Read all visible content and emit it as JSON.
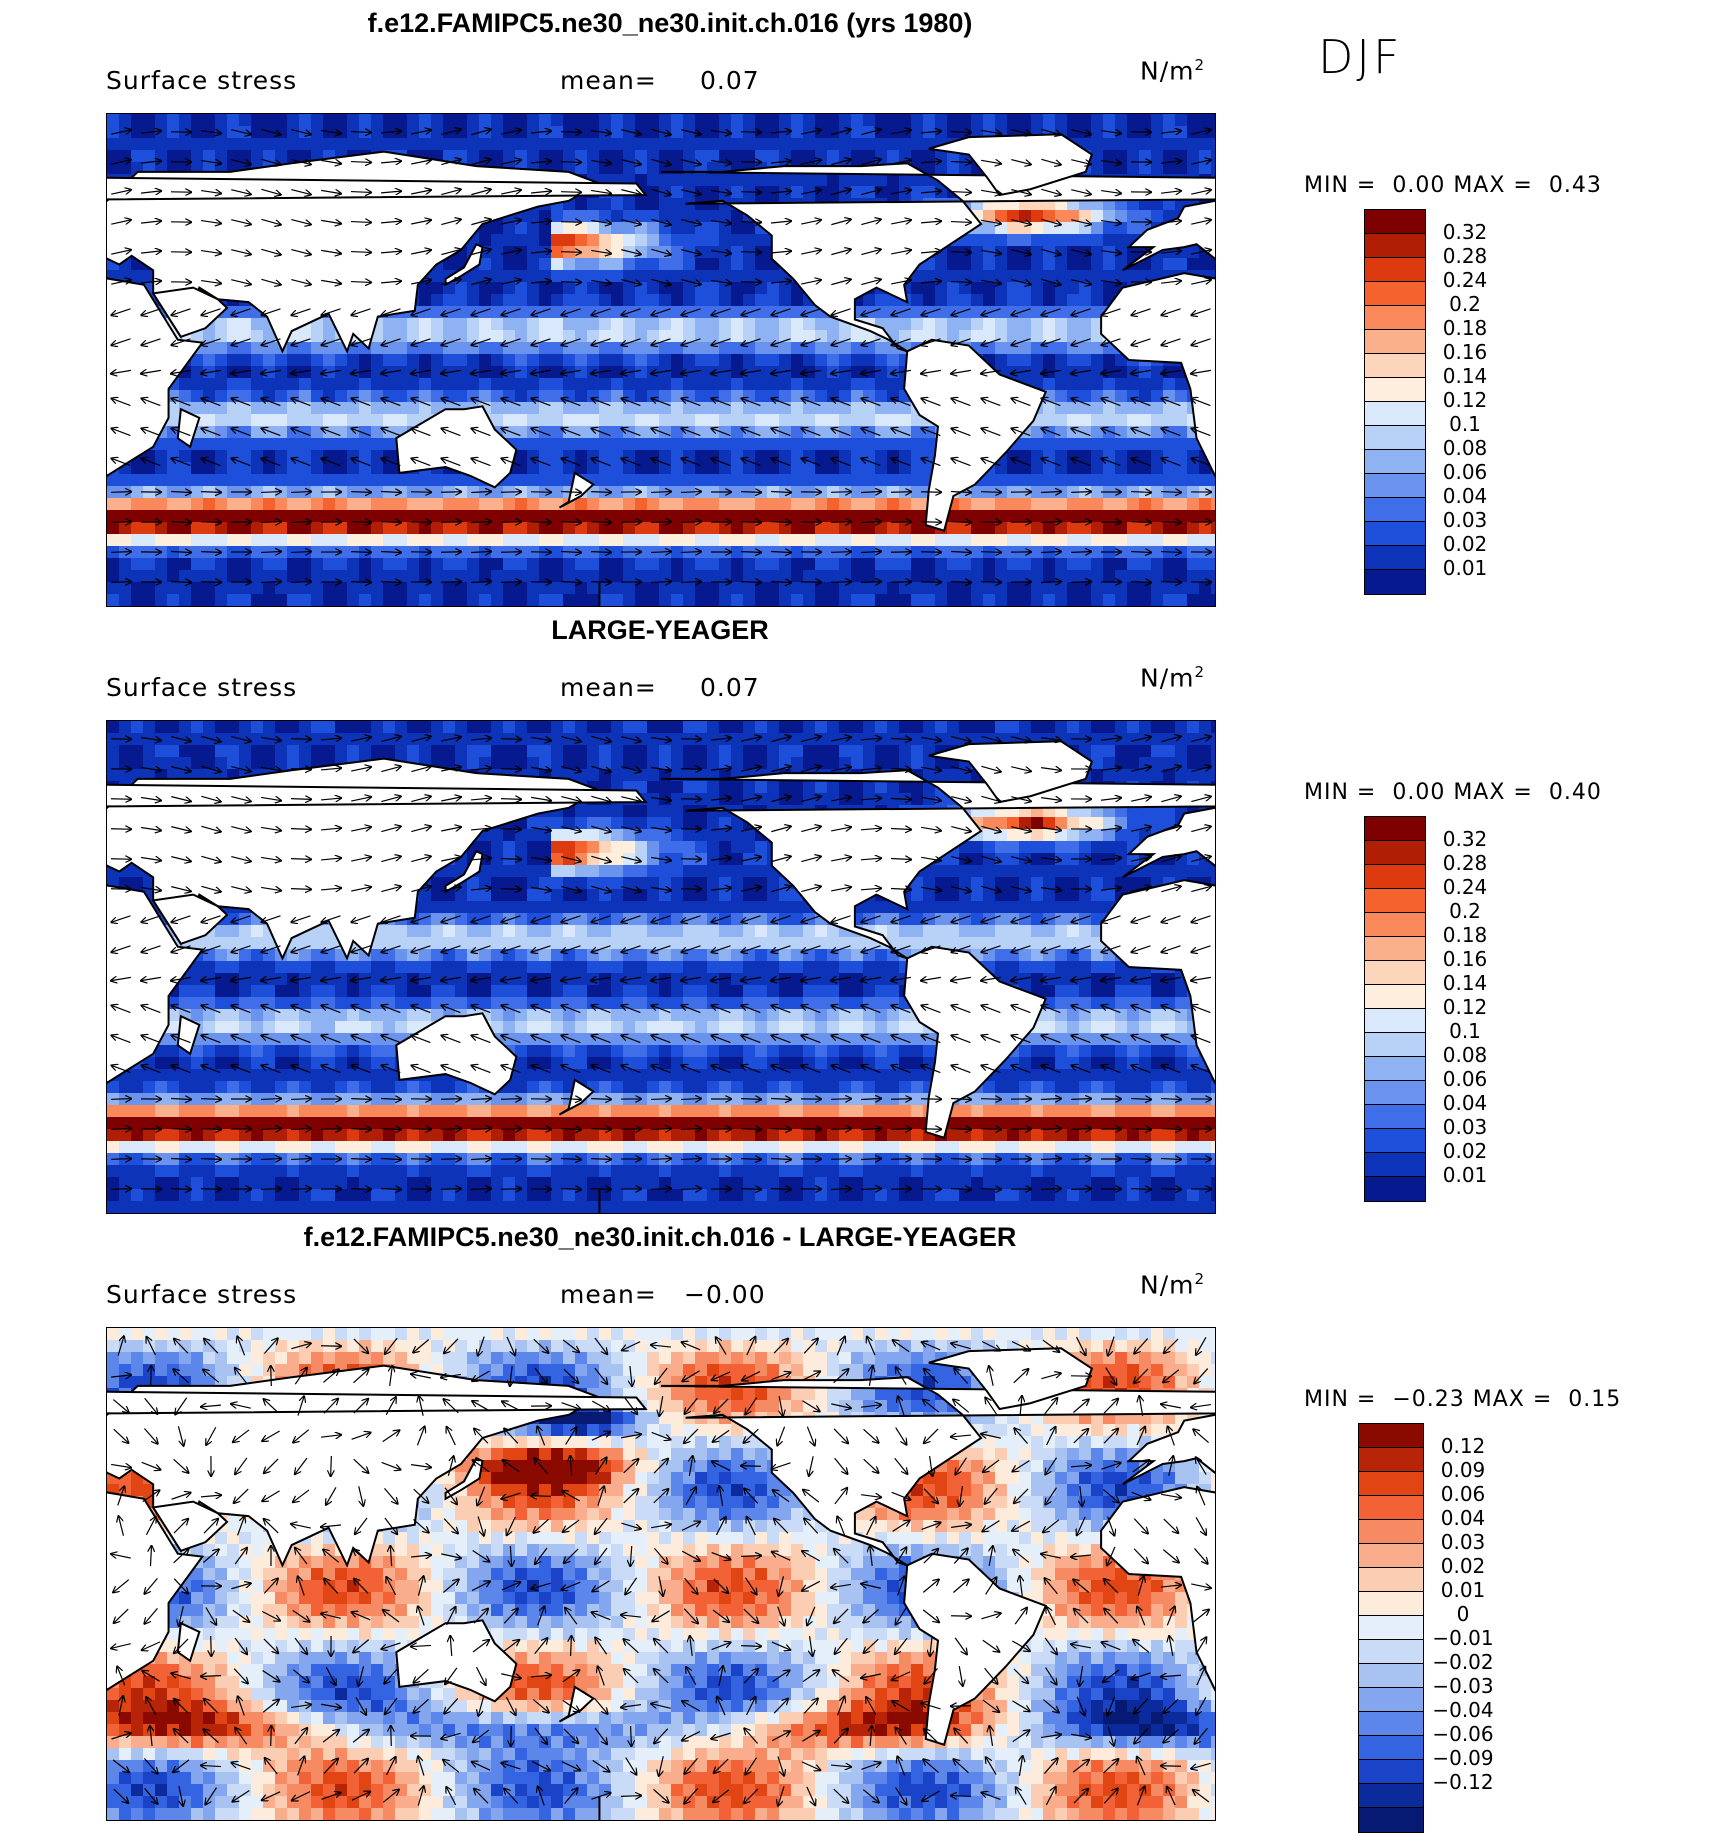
{
  "season": "DJF",
  "units_main": "N/m",
  "units_sup": "2",
  "panels": [
    {
      "title": "f.e12.FAMIPC5.ne30_ne30.init.ch.016 (yrs 1980)",
      "variable": "Surface stress",
      "mean_label": "mean=",
      "mean_value": "0.07",
      "min_label": "MIN =",
      "min_value": "0.00",
      "max_label": "MAX =",
      "max_value": "0.43",
      "scale": "abs",
      "colorbar": {
        "colors": [
          "#7f0000",
          "#b01e05",
          "#dd3a10",
          "#f4632d",
          "#f9895a",
          "#fbb08c",
          "#fdd5bb",
          "#fdeedd",
          "#d9e9fb",
          "#b7d1f7",
          "#8fb3f2",
          "#6a93ee",
          "#3f6ee8",
          "#1d4fdb",
          "#0d33b8",
          "#06198f"
        ],
        "ticks": [
          "0.32",
          "0.28",
          "0.24",
          "0.2",
          "0.18",
          "0.16",
          "0.14",
          "0.12",
          "0.1",
          "0.08",
          "0.06",
          "0.04",
          "0.03",
          "0.02",
          "0.01"
        ]
      }
    },
    {
      "title": "LARGE-YEAGER",
      "variable": "Surface stress",
      "mean_label": "mean=",
      "mean_value": "0.07",
      "min_label": "MIN =",
      "min_value": "0.00",
      "max_label": "MAX =",
      "max_value": "0.40",
      "scale": "abs",
      "colorbar": {
        "colors": [
          "#7f0000",
          "#b01e05",
          "#dd3a10",
          "#f4632d",
          "#f9895a",
          "#fbb08c",
          "#fdd5bb",
          "#fdeedd",
          "#d9e9fb",
          "#b7d1f7",
          "#8fb3f2",
          "#6a93ee",
          "#3f6ee8",
          "#1d4fdb",
          "#0d33b8",
          "#06198f"
        ],
        "ticks": [
          "0.32",
          "0.28",
          "0.24",
          "0.2",
          "0.18",
          "0.16",
          "0.14",
          "0.12",
          "0.1",
          "0.08",
          "0.06",
          "0.04",
          "0.03",
          "0.02",
          "0.01"
        ]
      }
    },
    {
      "title": "f.e12.FAMIPC5.ne30_ne30.init.ch.016 - LARGE-YEAGER",
      "variable": "Surface stress",
      "mean_label": "mean=",
      "mean_value": "−0.00",
      "min_label": "MIN =",
      "min_value": "−0.23",
      "max_label": "MAX =",
      "max_value": "0.15",
      "scale": "diff",
      "colorbar": {
        "colors": [
          "#8a0a00",
          "#b82408",
          "#e04513",
          "#f26236",
          "#f68a63",
          "#f9ad8c",
          "#fbcdb2",
          "#fdebdc",
          "#e5effa",
          "#c9dbf6",
          "#a8c3f2",
          "#84a6ee",
          "#5c86ea",
          "#3564e2",
          "#1a43c8",
          "#0b2a9c",
          "#061a74"
        ],
        "ticks": [
          "0.12",
          "0.09",
          "0.06",
          "0.04",
          "0.03",
          "0.02",
          "0.01",
          "0",
          "−0.01",
          "−0.02",
          "−0.03",
          "−0.04",
          "−0.06",
          "−0.09",
          "−0.12"
        ]
      }
    }
  ]
}
